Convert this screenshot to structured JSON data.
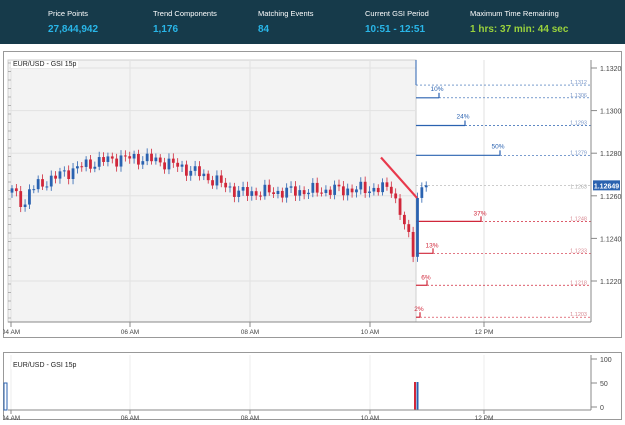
{
  "header": {
    "stats": [
      {
        "label": "Price Points",
        "value": "27,844,942",
        "color": "#29b6e8"
      },
      {
        "label": "Trend Components",
        "value": "1,176",
        "color": "#29b6e8"
      },
      {
        "label": "Matching Events",
        "value": "84",
        "color": "#29b6e8"
      },
      {
        "label": "Current GSI Period",
        "value": "10:51 - 12:51",
        "color": "#29b6e8"
      },
      {
        "label": "Maximum Time Remaining",
        "value": "1 hrs: 37 min: 44 sec",
        "color": "#9ad23c"
      }
    ]
  },
  "price_pane": {
    "title": "EUR/USD - GSI 15p",
    "y_ticks": [
      "1.1320",
      "1.1300",
      "1.1280",
      "1.1260",
      "1.1240",
      "1.1220"
    ],
    "x_ticks": [
      "04 AM",
      "06 AM",
      "08 AM",
      "10 AM",
      "12 PM"
    ],
    "current_price": "1.12649",
    "level_labels": [
      "1.1312",
      "1.1306",
      "1.1293",
      "1.1279",
      "1.1263",
      "1.1248",
      "1.1233",
      "1.1218",
      "1.1203"
    ],
    "up_levels": [
      {
        "pct": "10%",
        "price": "1.1306"
      },
      {
        "pct": "24%",
        "price": "1.1293"
      },
      {
        "pct": "50%",
        "price": "1.1279"
      }
    ],
    "down_levels": [
      {
        "pct": "37%",
        "price": "1.1248"
      },
      {
        "pct": "13%",
        "price": "1.1233"
      },
      {
        "pct": "6%",
        "price": "1.1218"
      },
      {
        "pct": "2%",
        "price": "1.1203"
      }
    ],
    "colors": {
      "up": "#2a62b0",
      "down": "#d0273a",
      "bg": "#f3f3f3"
    }
  },
  "volume_pane": {
    "title": "EUR/USD - GSI 15p",
    "y_ticks": [
      "100",
      "50",
      "0"
    ],
    "x_ticks": [
      "04 AM",
      "06 AM",
      "08 AM",
      "10 AM",
      "12 PM"
    ]
  }
}
